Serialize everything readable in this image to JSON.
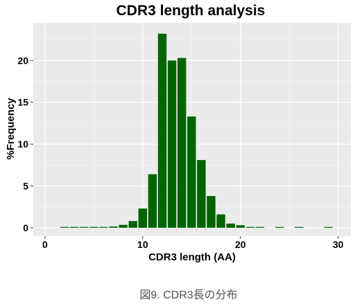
{
  "chart_data": {
    "type": "bar",
    "title": "CDR3 length analysis",
    "xlabel": "CDR3 length (AA)",
    "ylabel": "%Frequency",
    "xlim": [
      -1.2,
      31.3
    ],
    "ylim": [
      -1.0,
      24.5
    ],
    "x_ticks": [
      0,
      10,
      20,
      30
    ],
    "y_ticks": [
      0,
      5,
      10,
      15,
      20
    ],
    "grid": true,
    "bar_color": "#006400",
    "panel_color": "#ebebeb",
    "x": [
      2,
      3,
      4,
      5,
      6,
      7,
      8,
      9,
      10,
      11,
      12,
      13,
      14,
      15,
      16,
      17,
      18,
      19,
      20,
      21,
      22,
      24,
      26,
      29
    ],
    "values": [
      0.05,
      0.05,
      0.05,
      0.05,
      0.1,
      0.15,
      0.35,
      0.8,
      2.3,
      6.4,
      23.2,
      20.0,
      20.3,
      13.3,
      8.1,
      3.8,
      1.6,
      0.5,
      0.3,
      0.1,
      0.05,
      0.05,
      0.05,
      0.05
    ]
  },
  "caption": "図9.  CDR3長の分布"
}
